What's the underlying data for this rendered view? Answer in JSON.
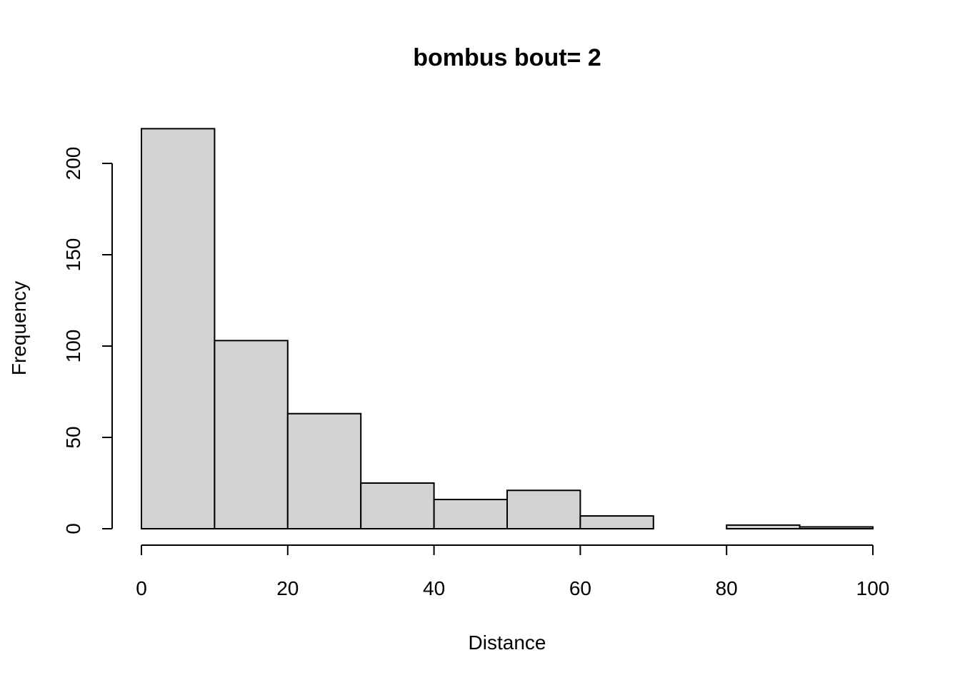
{
  "chart_data": {
    "type": "bar",
    "title": "bombus  bout= 2",
    "xlabel": "Distance",
    "ylabel": "Frequency",
    "bins": [
      {
        "start": 0,
        "end": 10,
        "value": 219
      },
      {
        "start": 10,
        "end": 20,
        "value": 103
      },
      {
        "start": 20,
        "end": 30,
        "value": 63
      },
      {
        "start": 30,
        "end": 40,
        "value": 25
      },
      {
        "start": 40,
        "end": 50,
        "value": 16
      },
      {
        "start": 50,
        "end": 60,
        "value": 21
      },
      {
        "start": 60,
        "end": 70,
        "value": 7
      },
      {
        "start": 70,
        "end": 80,
        "value": 0
      },
      {
        "start": 80,
        "end": 90,
        "value": 2
      },
      {
        "start": 90,
        "end": 100,
        "value": 1
      }
    ],
    "xlim": [
      0,
      100
    ],
    "ylim": [
      0,
      219
    ],
    "x_ticks": [
      0,
      20,
      40,
      60,
      80,
      100
    ],
    "y_ticks": [
      0,
      50,
      100,
      150,
      200
    ],
    "bar_color": "#d3d3d3",
    "grid": false,
    "legend": "none"
  }
}
